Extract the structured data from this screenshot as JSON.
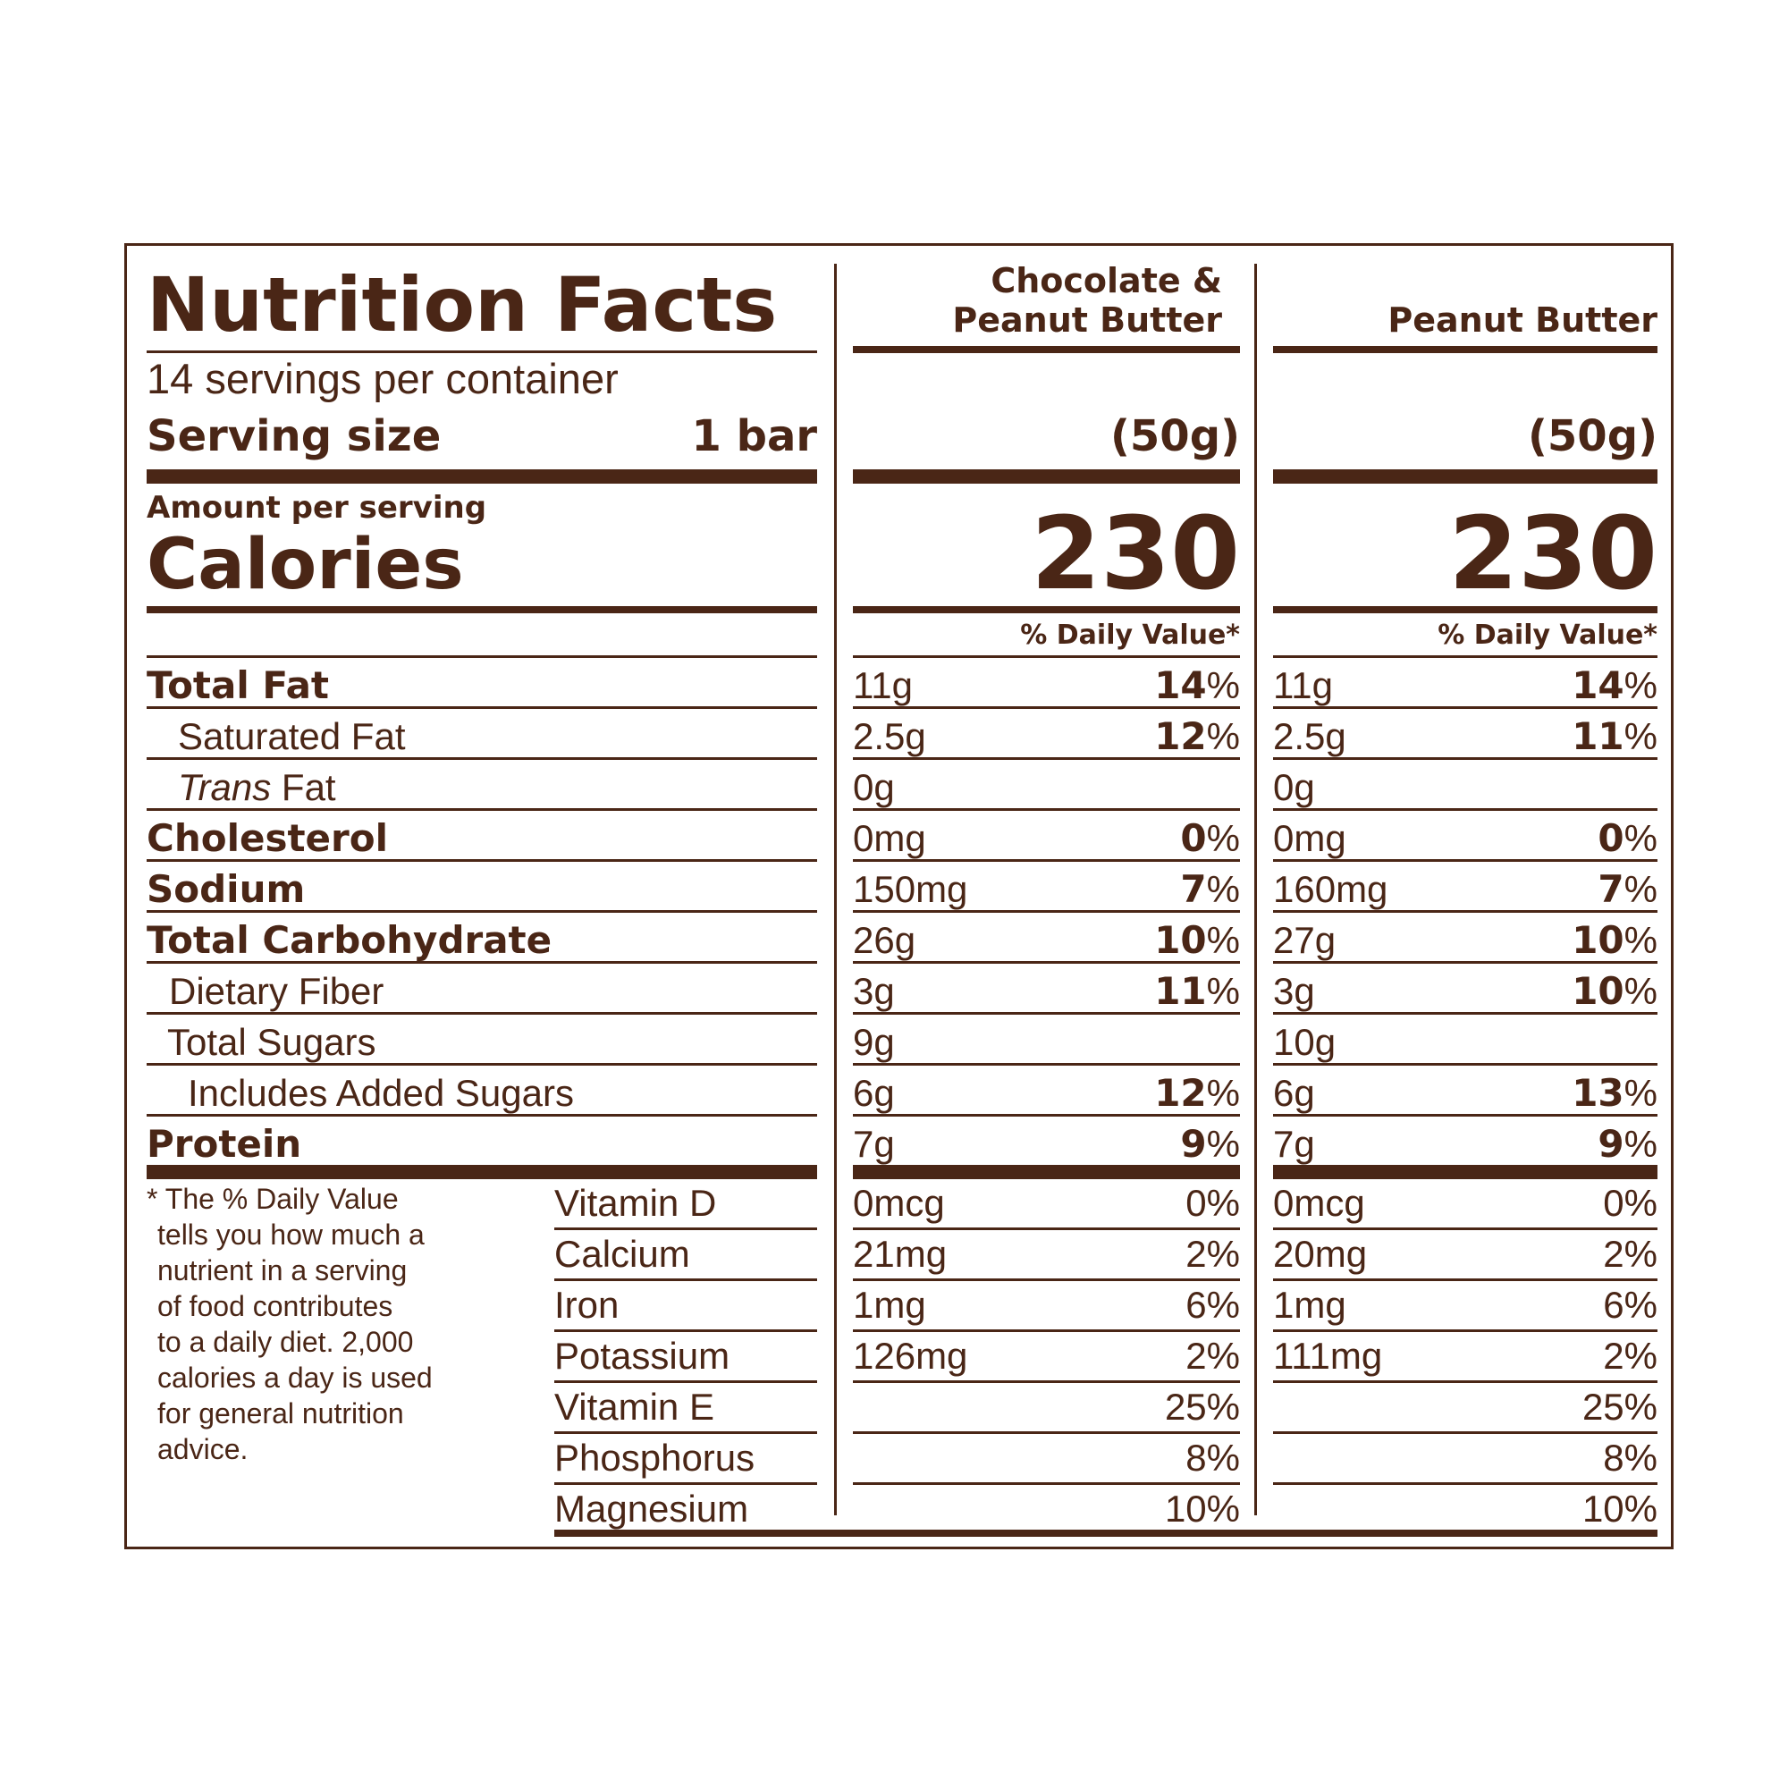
{
  "title": "Nutrition Facts",
  "servings_per_container": "14 servings per container",
  "serving_size_label": "Serving size",
  "serving_size_value": "1 bar",
  "amount_per_serving": "Amount per serving",
  "calories_label": "Calories",
  "columns": [
    {
      "name_line1": "Chocolate &",
      "name_line2": "Peanut Butter",
      "weight": "(50g)",
      "calories": "230",
      "dv_header": "% Daily Value*"
    },
    {
      "name_line1": "",
      "name_line2": "Peanut Butter",
      "weight": "(50g)",
      "calories": "230",
      "dv_header": "% Daily Value*"
    }
  ],
  "nutrients": [
    {
      "label": "Total Fat",
      "c1_amount": "11g",
      "c1_num": "14",
      "c1_sym": "%",
      "c2_amount": "11g",
      "c2_num": "14",
      "c2_sym": "%"
    },
    {
      "label": "Saturated Fat",
      "c1_amount": "2.5g",
      "c1_num": "12",
      "c1_sym": "%",
      "c2_amount": "2.5g",
      "c2_num": "11",
      "c2_sym": "%"
    },
    {
      "label_italic": "Trans",
      "label": " Fat",
      "c1_amount": "0g",
      "c1_num": "",
      "c1_sym": "",
      "c2_amount": "0g",
      "c2_num": "",
      "c2_sym": ""
    },
    {
      "label": "Cholesterol",
      "c1_amount": "0mg",
      "c1_num": "0",
      "c1_sym": "%",
      "c2_amount": "0mg",
      "c2_num": "0",
      "c2_sym": "%"
    },
    {
      "label": "Sodium",
      "c1_amount": "150mg",
      "c1_num": "7",
      "c1_sym": "%",
      "c2_amount": "160mg",
      "c2_num": "7",
      "c2_sym": "%"
    },
    {
      "label": "Total Carbohydrate",
      "c1_amount": "26g",
      "c1_num": "10",
      "c1_sym": "%",
      "c2_amount": "27g",
      "c2_num": "10",
      "c2_sym": "%"
    },
    {
      "label": "Dietary Fiber",
      "c1_amount": "3g",
      "c1_num": "11",
      "c1_sym": "%",
      "c2_amount": "3g",
      "c2_num": "10",
      "c2_sym": "%"
    },
    {
      "label": "Total Sugars",
      "c1_amount": "9g",
      "c1_num": "",
      "c1_sym": "",
      "c2_amount": "10g",
      "c2_num": "",
      "c2_sym": ""
    },
    {
      "label": "Includes Added Sugars",
      "c1_amount": "6g",
      "c1_num": "12",
      "c1_sym": "%",
      "c2_amount": "6g",
      "c2_num": "13",
      "c2_sym": "%"
    },
    {
      "label": "Protein",
      "c1_amount": "7g",
      "c1_num": "9",
      "c1_sym": "%",
      "c2_amount": "7g",
      "c2_num": "9",
      "c2_sym": "%"
    }
  ],
  "footnote": [
    "* The % Daily Value",
    "tells you how much a",
    "nutrient in a serving",
    "of food contributes",
    "to a daily diet. 2,000",
    "calories a day is used",
    "for general nutrition",
    "advice."
  ],
  "micronutrients": [
    {
      "label": "Vitamin D",
      "c1_amount": "0mcg",
      "c1_pct": "0%",
      "c2_amount": "0mcg",
      "c2_pct": "0%"
    },
    {
      "label": "Calcium",
      "c1_amount": "21mg",
      "c1_pct": "2%",
      "c2_amount": "20mg",
      "c2_pct": "2%"
    },
    {
      "label": "Iron",
      "c1_amount": "1mg",
      "c1_pct": "6%",
      "c2_amount": "1mg",
      "c2_pct": "6%"
    },
    {
      "label": "Potassium",
      "c1_amount": "126mg",
      "c1_pct": "2%",
      "c2_amount": "111mg",
      "c2_pct": "2%"
    },
    {
      "label": "Vitamin E",
      "c1_amount": "",
      "c1_pct": "25%",
      "c2_amount": "",
      "c2_pct": "25%"
    },
    {
      "label": "Phosphorus",
      "c1_amount": "",
      "c1_pct": "8%",
      "c2_amount": "",
      "c2_pct": "8%"
    },
    {
      "label": "Magnesium",
      "c1_amount": "",
      "c1_pct": "10%",
      "c2_amount": "",
      "c2_pct": "10%"
    }
  ],
  "colors": {
    "ink": "#4a2616",
    "background": "#ffffff"
  }
}
